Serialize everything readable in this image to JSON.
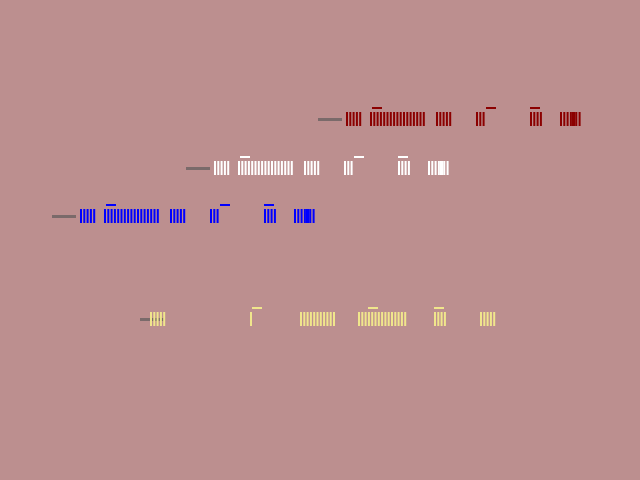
{
  "background_color": "#bc8f8f",
  "glyph_rows": [
    {
      "name": "red-garbled-text",
      "color": "#8b0000"
    },
    {
      "name": "white-garbled-text",
      "color": "#ffffff"
    },
    {
      "name": "blue-garbled-text",
      "color": "#0000ff"
    },
    {
      "name": "yellow-garbled-text",
      "color": "#f0e68c"
    }
  ]
}
